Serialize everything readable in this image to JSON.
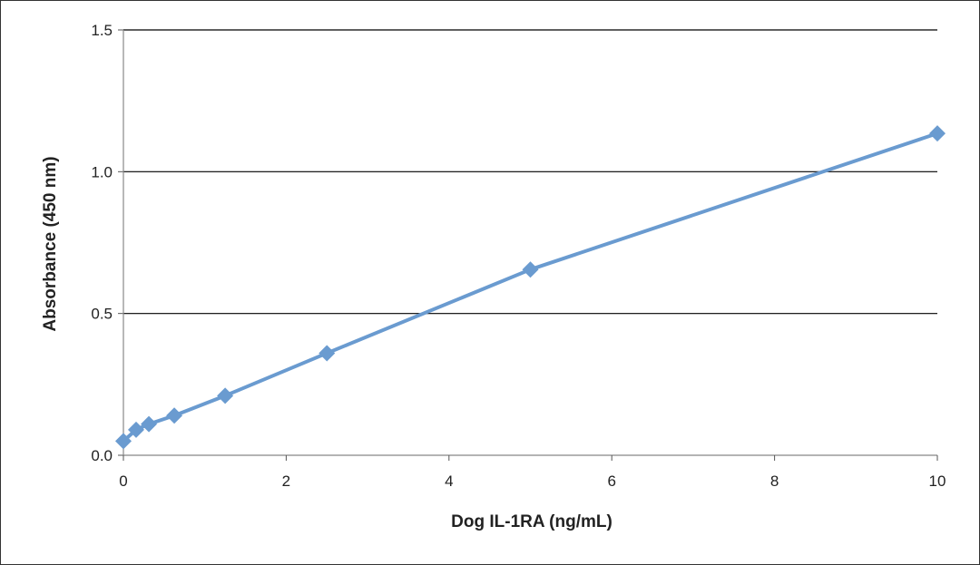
{
  "chart_data": {
    "type": "line",
    "title": "",
    "xlabel": "Dog IL-1RA (ng/mL)",
    "ylabel": "Absorbance (450 nm)",
    "xlim": [
      0,
      10
    ],
    "ylim": [
      0,
      1.5
    ],
    "x_ticks": [
      "0",
      "2",
      "4",
      "6",
      "8",
      "10"
    ],
    "y_ticks": [
      "0.0",
      "0.5",
      "1.0",
      "1.5"
    ],
    "grid": "horizontal",
    "legend": "none",
    "series": [
      {
        "color": "#6a9bd0",
        "marker": "diamond",
        "x": [
          0,
          0.156,
          0.313,
          0.625,
          1.25,
          2.5,
          5,
          10
        ],
        "y": [
          0.05,
          0.09,
          0.11,
          0.14,
          0.21,
          0.36,
          0.655,
          1.135
        ]
      }
    ]
  }
}
